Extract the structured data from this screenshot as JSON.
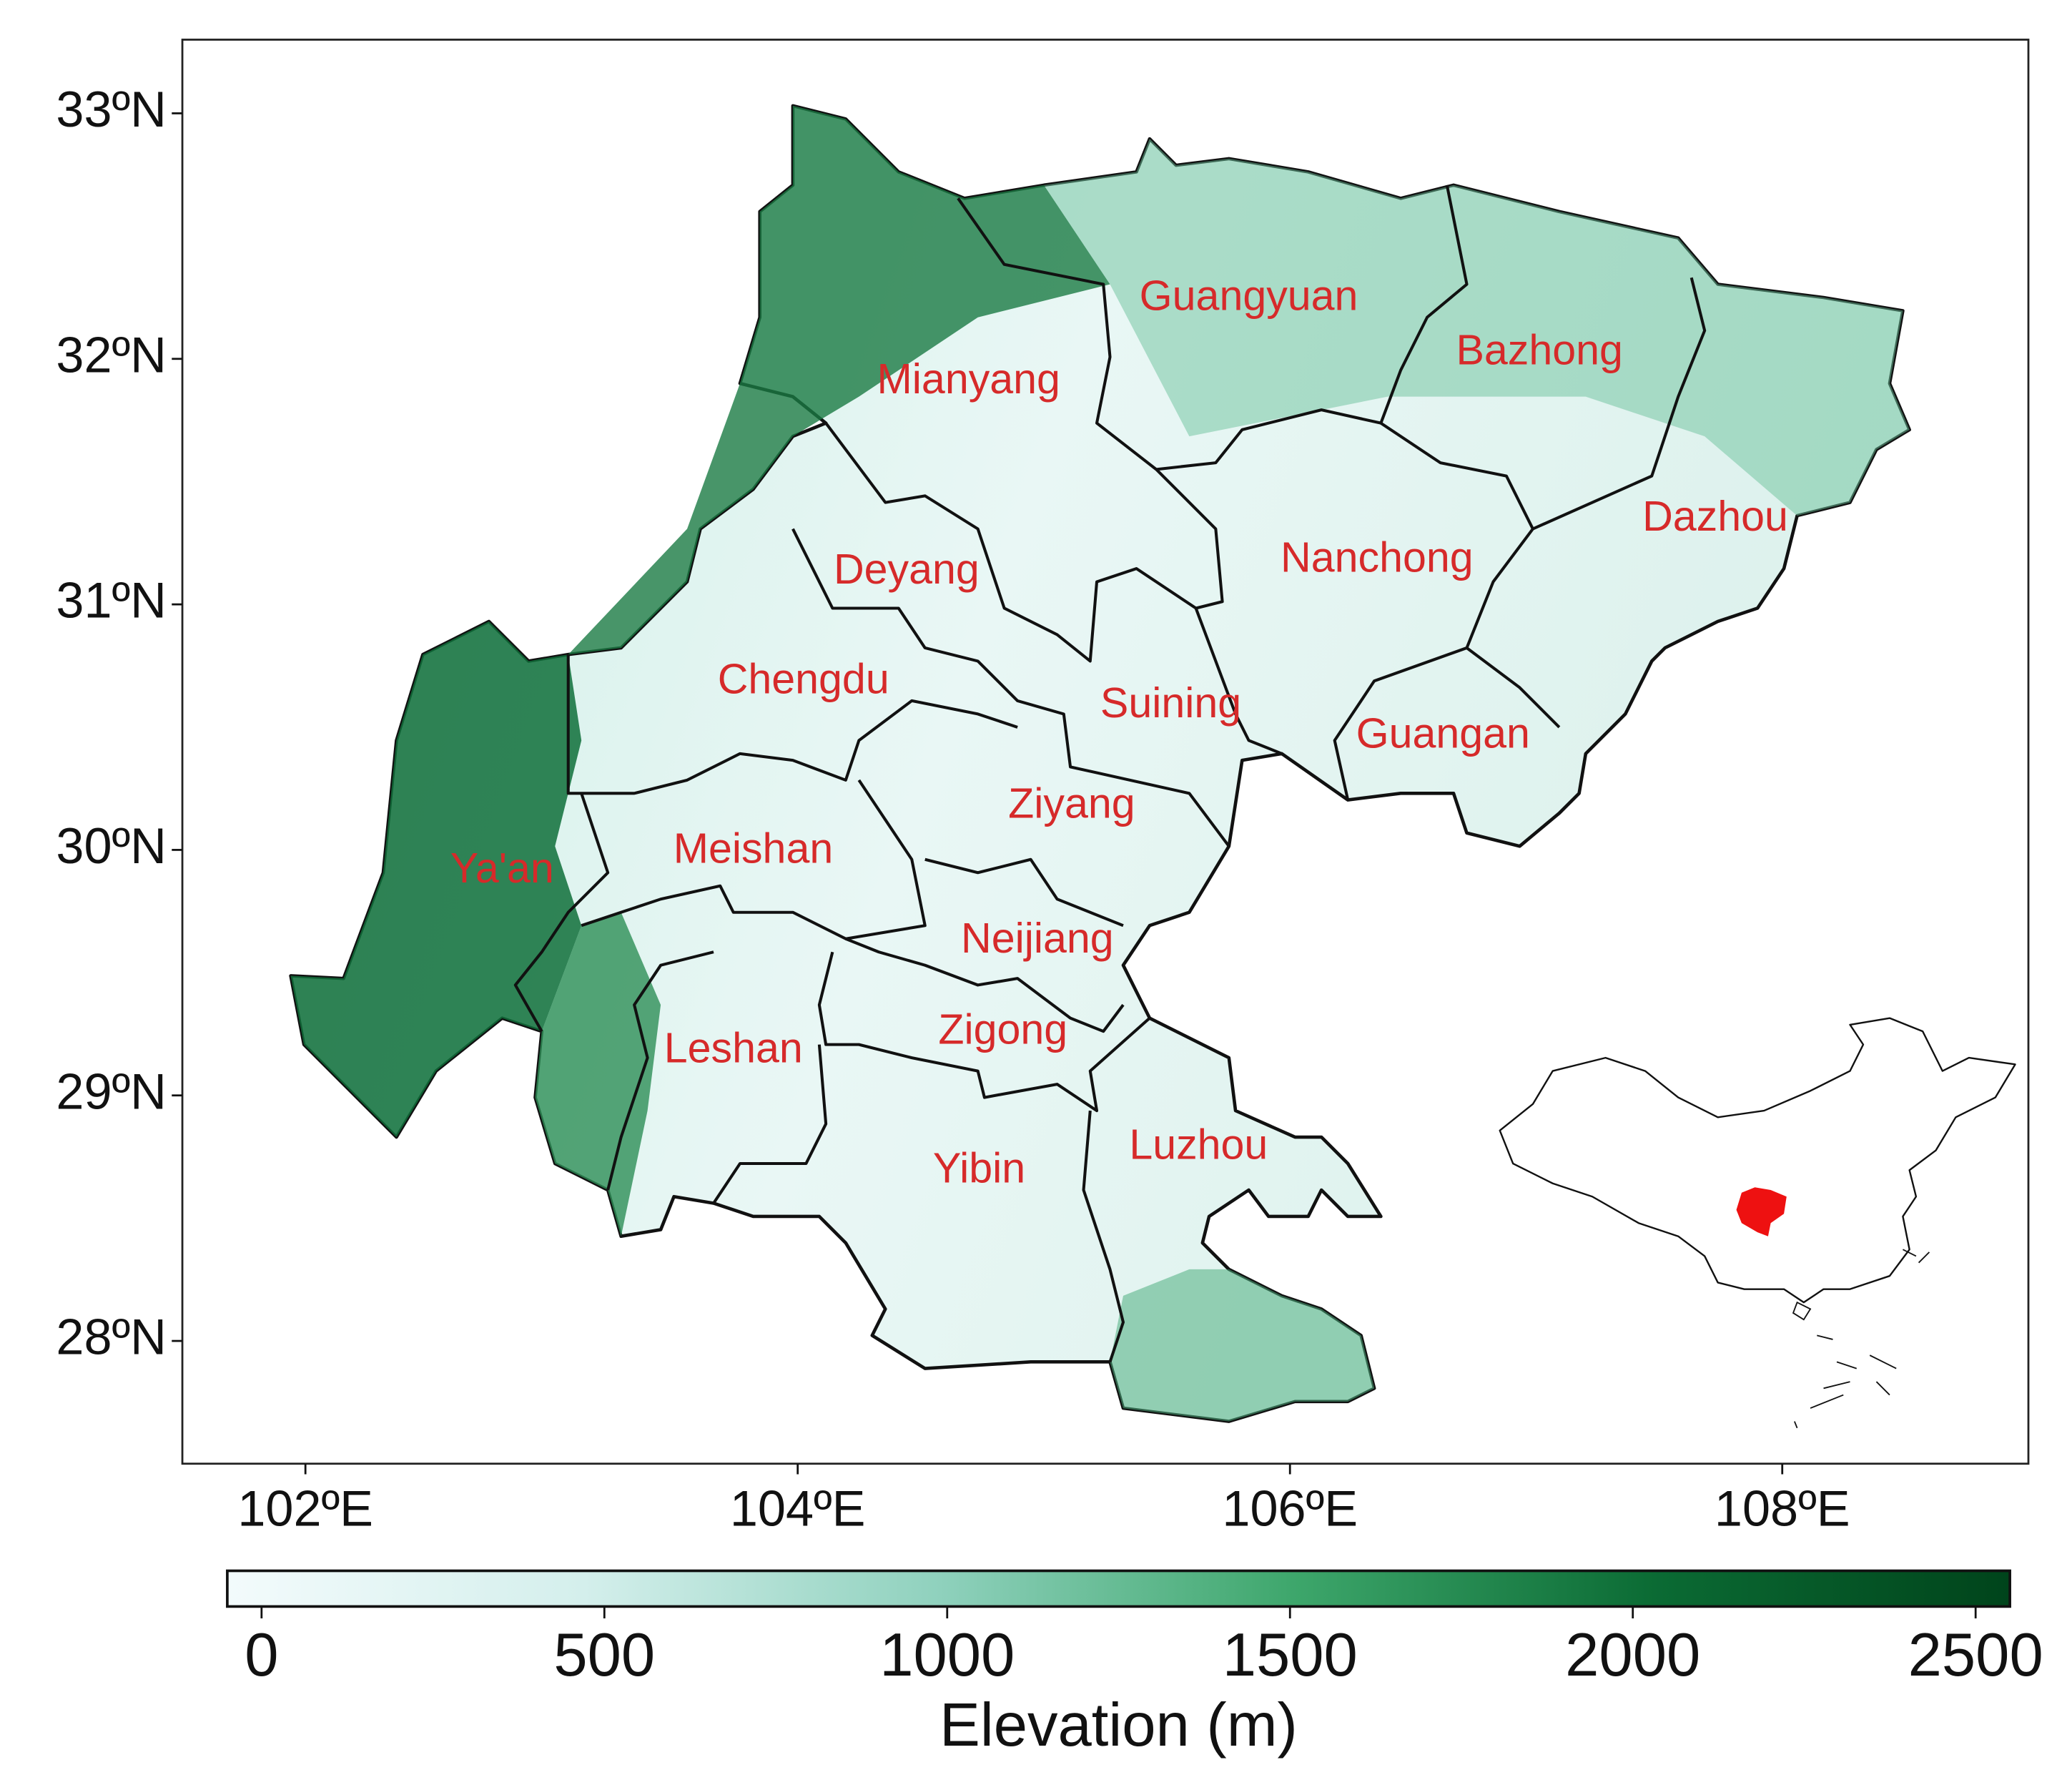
{
  "map": {
    "xlim": [
      101.5,
      109
    ],
    "ylim": [
      27.5,
      33.3
    ],
    "xticks": [
      {
        "value": 102,
        "label": "102ºE"
      },
      {
        "value": 104,
        "label": "104ºE"
      },
      {
        "value": 106,
        "label": "106ºE"
      },
      {
        "value": 108,
        "label": "108ºE"
      }
    ],
    "yticks": [
      {
        "value": 33,
        "label": "33ºN"
      },
      {
        "value": 32,
        "label": "32ºN"
      },
      {
        "value": 31,
        "label": "31ºN"
      },
      {
        "value": 30,
        "label": "30ºN"
      },
      {
        "value": 29,
        "label": "29ºN"
      },
      {
        "value": 28,
        "label": "28ºN"
      }
    ],
    "regions": [
      "Guangyuan",
      "Bazhong",
      "Mianyang",
      "Dazhou",
      "Nanchong",
      "Deyang",
      "Chengdu",
      "Suining",
      "Guangan",
      "Ziyang",
      "Meishan",
      "Ya'an",
      "Neijiang",
      "Zigong",
      "Leshan",
      "Luzhou",
      "Yibin"
    ],
    "region_label_color": "#d62a2a",
    "colorbar": {
      "label": "Elevation (m)",
      "lim": [
        -50,
        2550
      ],
      "ticks": [
        0,
        500,
        1000,
        1500,
        2000,
        2500
      ],
      "colors": [
        "#f3fbfc",
        "#d4efec",
        "#8fd1bd",
        "#3da66b",
        "#0b6b34",
        "#00441b"
      ]
    }
  }
}
